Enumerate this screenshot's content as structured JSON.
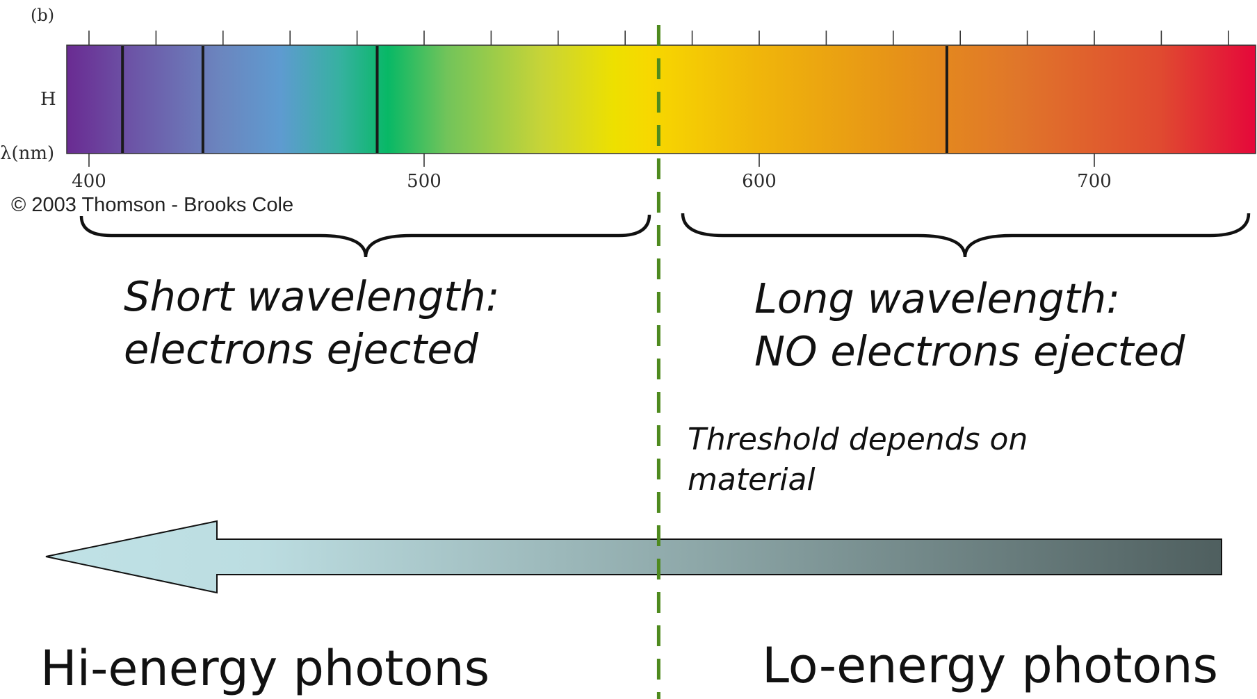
{
  "spectrum": {
    "panel_label": "(b)",
    "row_label": "H",
    "axis_label": "λ(nm)",
    "range_nm": [
      397,
      752
    ],
    "tick_minor_step_nm": 20,
    "tick_labels": [
      "400",
      "500",
      "600",
      "700"
    ],
    "tick_label_values_nm": [
      400,
      500,
      600,
      700
    ],
    "hydrogen_lines_nm": [
      410,
      434,
      486,
      656
    ],
    "credit": "© 2003 Thomson - Brooks Cole"
  },
  "threshold": {
    "wavelength_nm": 570,
    "color": "#4e8a1e",
    "note_line1": "Threshold depends on",
    "note_line2": "material"
  },
  "short_side": {
    "line1": "Short wavelength:",
    "line2": "electrons ejected"
  },
  "long_side": {
    "line1": "Long wavelength:",
    "line2": "NO electrons ejected"
  },
  "energy_arrow": {
    "left_label": "Hi-energy photons",
    "right_label": "Lo-energy photons",
    "color_light": "#c0e2e6",
    "color_dark": "#4f5f5f"
  }
}
